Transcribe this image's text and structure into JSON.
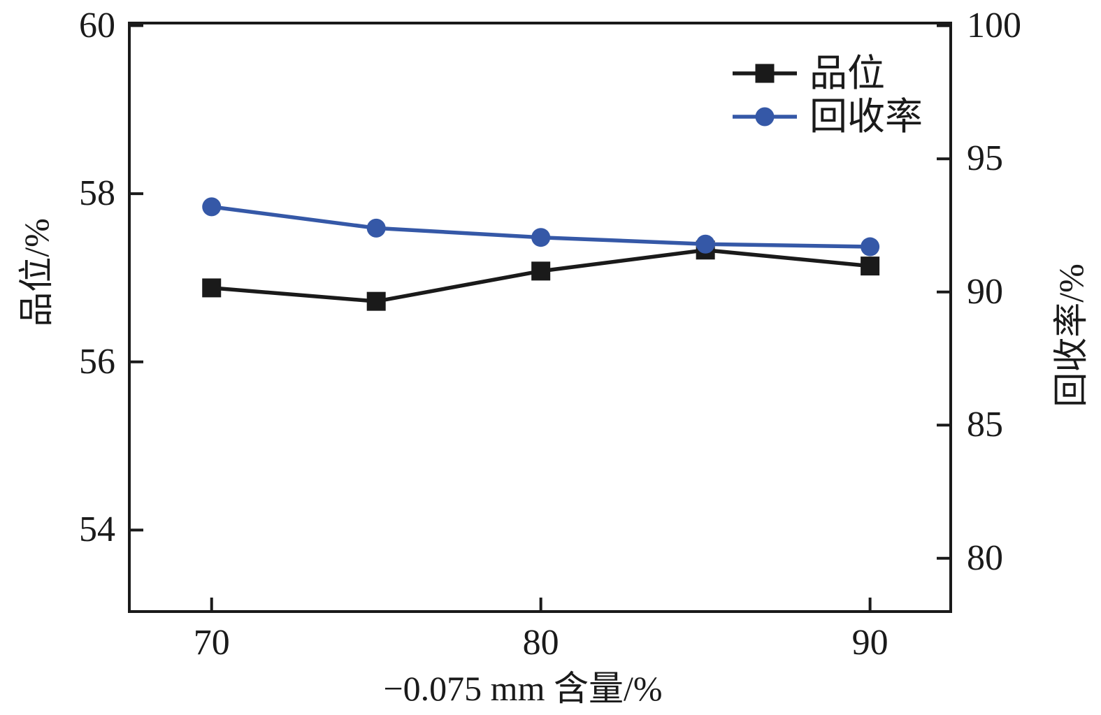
{
  "chart_data": {
    "type": "line",
    "title": "",
    "xlabel": "−0.075 mm 含量/%",
    "x": [
      70,
      75,
      80,
      85,
      90
    ],
    "series": [
      {
        "name": "品位",
        "axis": "left",
        "color": "#1a1a1a",
        "marker": "square",
        "values": [
          56.88,
          56.72,
          57.08,
          57.33,
          57.14
        ]
      },
      {
        "name": "回收率",
        "axis": "right",
        "color": "#3558a7",
        "marker": "circle",
        "values": [
          93.2,
          92.4,
          92.05,
          91.8,
          91.7
        ]
      }
    ],
    "axes": {
      "x": {
        "ticks": [
          70,
          80,
          90
        ],
        "lim": [
          67.5,
          92.45
        ]
      },
      "left": {
        "label": "品位/%",
        "ticks": [
          60,
          58,
          56,
          54
        ],
        "lim": [
          53.03,
          60.03
        ]
      },
      "right": {
        "label": "回收率/%",
        "ticks": [
          100,
          95,
          90,
          85,
          80
        ],
        "lim": [
          78.0,
          100.1
        ]
      }
    },
    "legend": {
      "position": "upper-right",
      "items": [
        "品位",
        "回收率"
      ]
    },
    "grid": "off",
    "frame_color": "#1a1a1a"
  }
}
